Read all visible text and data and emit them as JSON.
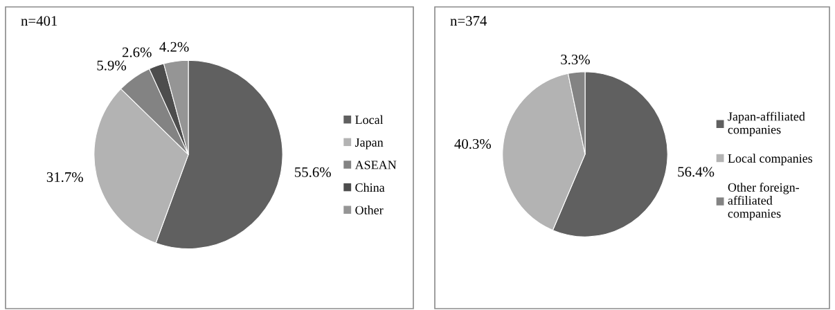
{
  "chart_data": [
    {
      "type": "pie",
      "categories": [
        "Local",
        "Japan",
        "ASEAN",
        "China",
        "Other"
      ],
      "values": [
        55.6,
        31.7,
        5.9,
        2.6,
        4.2
      ],
      "colors": [
        "#606060",
        "#b3b3b3",
        "#838383",
        "#4d4d4d",
        "#959595"
      ],
      "value_labels": [
        "55.6%",
        "31.7%",
        "5.9%",
        "2.6%",
        "4.2%"
      ],
      "annotations": [
        "n=401"
      ],
      "legend": "right"
    },
    {
      "type": "pie",
      "categories": [
        "Japan-affiliated companies",
        "Local companies",
        "Other foreign-affiliated companies"
      ],
      "values": [
        56.4,
        40.3,
        3.3
      ],
      "colors": [
        "#606060",
        "#b3b3b3",
        "#838383"
      ],
      "value_labels": [
        "56.4%",
        "40.3%",
        "3.3%"
      ],
      "annotations": [
        "n=374"
      ],
      "legend": "right"
    }
  ]
}
